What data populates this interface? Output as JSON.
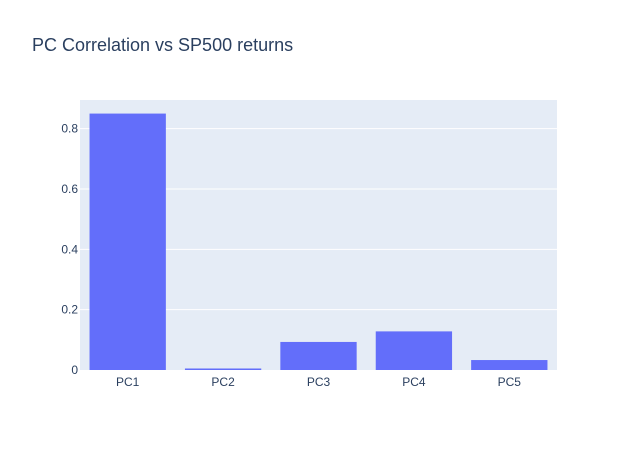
{
  "chart_data": {
    "type": "bar",
    "title": "PC Correlation vs SP500 returns",
    "categories": [
      "PC1",
      "PC2",
      "PC3",
      "PC4",
      "PC5"
    ],
    "values": [
      0.85,
      0.005,
      0.093,
      0.128,
      0.033
    ],
    "xlabel": "",
    "ylabel": "",
    "ylim": [
      0,
      0.895
    ],
    "yticks": [
      0,
      0.2,
      0.4,
      0.6,
      0.8
    ],
    "ytick_labels": [
      "0",
      "0.2",
      "0.4",
      "0.6",
      "0.8"
    ],
    "grid": true,
    "legend": "none",
    "colors": {
      "bar": "#636efa",
      "plot_bg": "#e5ecf6",
      "grid": "#ffffff",
      "text": "#2a3f5f"
    }
  }
}
